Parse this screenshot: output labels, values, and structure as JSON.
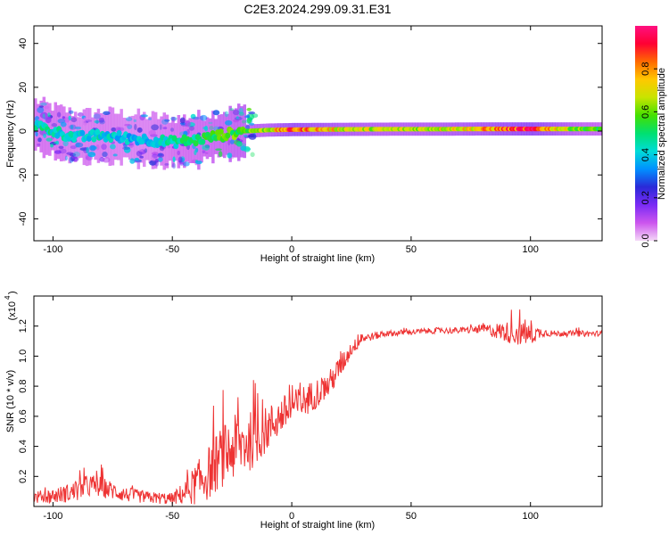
{
  "title": "C2E3.2024.299.09.31.E31",
  "chart_data": [
    {
      "type": "heatmap",
      "xlabel": "Height of straight line (km)",
      "ylabel": "Frequency (Hz)",
      "xlim": [
        -108,
        130
      ],
      "ylim": [
        -50,
        48
      ],
      "x_ticks": [
        -100,
        -50,
        0,
        50,
        100
      ],
      "y_ticks": [
        -40,
        -20,
        0,
        20,
        40
      ],
      "colorbar": {
        "label": "Normalized spectral amplitude",
        "range": [
          0,
          1
        ],
        "ticks": [
          "0.0",
          "0.2",
          "0.4",
          "0.6",
          "0.8"
        ],
        "colors": [
          "#f4d9f7",
          "#cc55ee",
          "#7a2bf5",
          "#2a2ad8",
          "#0090ff",
          "#00dcd8",
          "#00e070",
          "#44e000",
          "#c8e400",
          "#ffc800",
          "#ff6a00",
          "#ff0033",
          "#ff1080"
        ]
      },
      "ridge": {
        "x": [
          -108,
          -100,
          -90,
          -80,
          -70,
          -60,
          -50,
          -40,
          -30,
          -20,
          -10,
          0,
          20,
          40,
          60,
          80,
          100,
          120,
          130
        ],
        "frequency": [
          3,
          0,
          -3,
          -2,
          -3,
          -4,
          -5,
          -4,
          -2,
          0,
          0.5,
          0.7,
          0.8,
          0.9,
          0.9,
          1.0,
          1.0,
          1.0,
          1.0
        ],
        "amplitude": [
          0.45,
          0.45,
          0.4,
          0.42,
          0.38,
          0.38,
          0.45,
          0.5,
          0.55,
          0.6,
          0.65,
          0.85,
          0.7,
          0.65,
          0.68,
          0.75,
          0.9,
          0.6,
          0.55
        ]
      }
    },
    {
      "type": "line",
      "xlabel": "Height of straight line (km)",
      "ylabel": "SNR (10 * v/v)",
      "y_multiplier": "(x10",
      "y_exponent": "4",
      "xlim": [
        -108,
        130
      ],
      "ylim": [
        0.0,
        1.4
      ],
      "x_ticks": [
        -100,
        -50,
        0,
        50,
        100
      ],
      "y_ticks": [
        0.2,
        0.4,
        0.6,
        0.8,
        1.0,
        1.2
      ],
      "color": "#ee3333",
      "series": [
        {
          "x": [
            -108,
            -100,
            -90,
            -85,
            -80,
            -70,
            -60,
            -50,
            -45,
            -40,
            -35,
            -30,
            -25,
            -20,
            -15,
            -10,
            -5,
            0,
            5,
            10,
            15,
            20,
            25,
            30,
            40,
            50,
            60,
            70,
            80,
            85,
            90,
            95,
            100,
            105,
            110,
            120,
            130
          ],
          "y": [
            0.06,
            0.07,
            0.1,
            0.14,
            0.13,
            0.08,
            0.06,
            0.05,
            0.09,
            0.15,
            0.22,
            0.32,
            0.38,
            0.42,
            0.45,
            0.52,
            0.6,
            0.65,
            0.7,
            0.75,
            0.8,
            0.92,
            1.05,
            1.12,
            1.15,
            1.16,
            1.17,
            1.17,
            1.18,
            1.17,
            1.16,
            1.15,
            1.14,
            1.16,
            1.15,
            1.15,
            1.15
          ],
          "noise": [
            0.04,
            0.05,
            0.07,
            0.08,
            0.07,
            0.05,
            0.04,
            0.04,
            0.08,
            0.14,
            0.18,
            0.2,
            0.22,
            0.22,
            0.18,
            0.15,
            0.13,
            0.12,
            0.11,
            0.1,
            0.09,
            0.08,
            0.05,
            0.03,
            0.02,
            0.02,
            0.02,
            0.02,
            0.03,
            0.05,
            0.07,
            0.08,
            0.07,
            0.03,
            0.02,
            0.02,
            0.02
          ]
        }
      ]
    }
  ]
}
